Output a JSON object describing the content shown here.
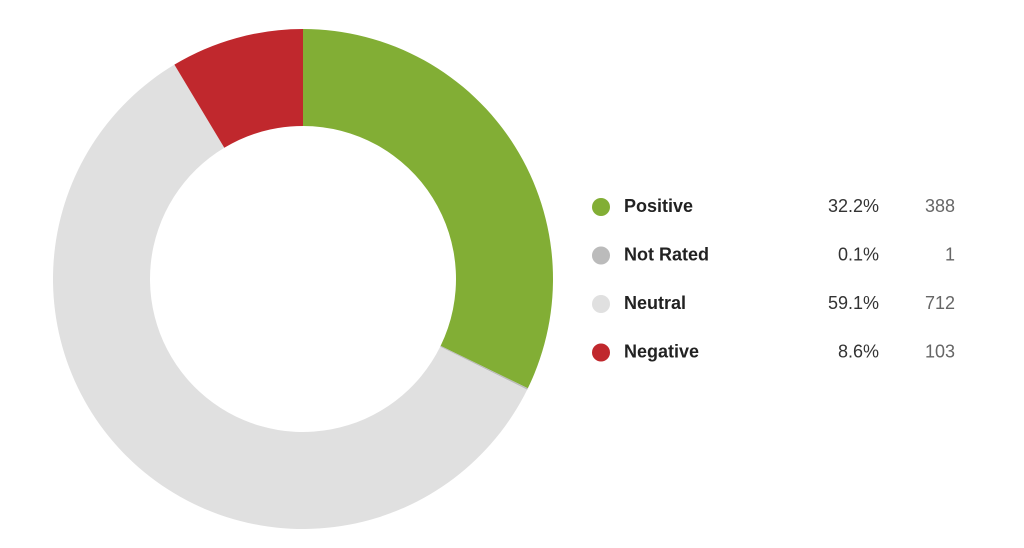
{
  "chart_data": {
    "type": "donut",
    "categories": [
      "Positive",
      "Not Rated",
      "Neutral",
      "Negative"
    ],
    "values": [
      32.2,
      0.1,
      59.1,
      8.6
    ],
    "value_labels": [
      "32.2%",
      "0.1%",
      "59.1%",
      "8.6%"
    ],
    "counts": [
      388,
      1,
      712,
      103
    ],
    "colors": [
      "#82ae35",
      "#bbbbbb",
      "#e0e0e0",
      "#c0282d"
    ]
  }
}
